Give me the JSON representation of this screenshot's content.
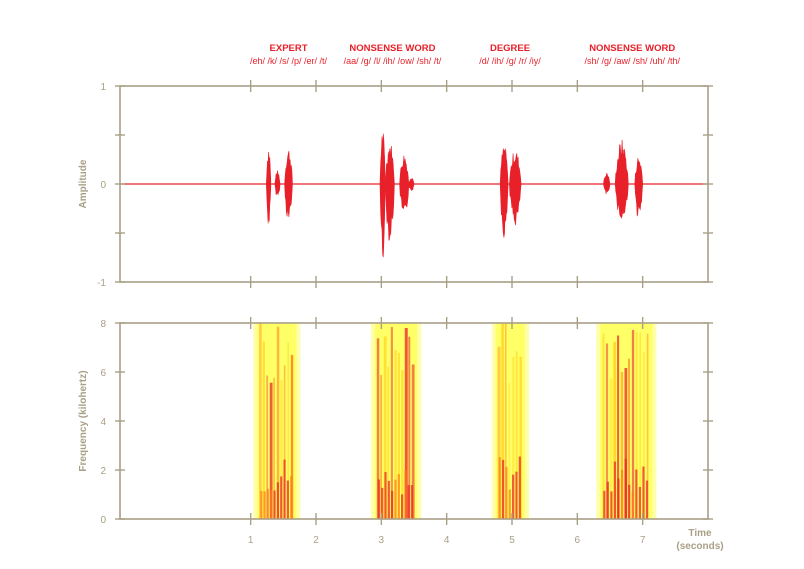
{
  "chart_data": [
    {
      "type": "line",
      "panel": "waveform",
      "ylabel": "Amplitude",
      "ylim": [
        -1,
        1
      ],
      "yticks": [
        "1",
        "0",
        "-1"
      ],
      "xlim": [
        -1.0,
        8.0
      ],
      "xticks": [
        1,
        2,
        3,
        4,
        5,
        6,
        7
      ],
      "grid": false,
      "color": "#e8202a",
      "words": [
        {
          "title": "EXPERT",
          "phonemes": "/eh/ /k/ /s/ /p/ /er/ /t/",
          "center": 1.58
        },
        {
          "title": "NONSENSE WORD",
          "phonemes": "/aa/ /g/ /l/ /ih/ /ow/ /sh/ /t/",
          "center": 3.17
        },
        {
          "title": "DEGREE",
          "phonemes": "/d/ /ih/ /g/ /r/ /iy/",
          "center": 4.97
        },
        {
          "title": "NONSENSE WORD",
          "phonemes": "/sh/ /g/ /aw/ /sh/ /uh/ /th/",
          "center": 6.84
        }
      ],
      "series": [
        {
          "segments": [
            {
              "x0": 1.24,
              "x1": 1.31,
              "amp_pos": 0.4,
              "amp_neg": 0.45
            },
            {
              "x0": 1.37,
              "x1": 1.45,
              "amp_pos": 0.14,
              "amp_neg": 0.14
            },
            {
              "x0": 1.52,
              "x1": 1.64,
              "amp_pos": 0.38,
              "amp_neg": 0.4
            }
          ]
        },
        {
          "segments": [
            {
              "x0": 2.98,
              "x1": 3.06,
              "amp_pos": 0.58,
              "amp_neg": 0.8
            },
            {
              "x0": 3.06,
              "x1": 3.2,
              "amp_pos": 0.45,
              "amp_neg": 0.6
            },
            {
              "x0": 3.28,
              "x1": 3.42,
              "amp_pos": 0.32,
              "amp_neg": 0.38
            },
            {
              "x0": 3.42,
              "x1": 3.5,
              "amp_pos": 0.08,
              "amp_neg": 0.08
            }
          ]
        },
        {
          "segments": [
            {
              "x0": 4.82,
              "x1": 4.94,
              "amp_pos": 0.42,
              "amp_neg": 0.55
            },
            {
              "x0": 4.96,
              "x1": 5.14,
              "amp_pos": 0.36,
              "amp_neg": 0.44
            }
          ]
        },
        {
          "segments": [
            {
              "x0": 6.4,
              "x1": 6.5,
              "amp_pos": 0.12,
              "amp_neg": 0.12
            },
            {
              "x0": 6.58,
              "x1": 6.78,
              "amp_pos": 0.46,
              "amp_neg": 0.4
            },
            {
              "x0": 6.88,
              "x1": 7.0,
              "amp_pos": 0.3,
              "amp_neg": 0.38
            }
          ]
        }
      ]
    },
    {
      "type": "heatmap",
      "panel": "spectrogram",
      "ylabel": "Frequency (kilohertz)",
      "xlabel": "Time",
      "xunit": "(seconds)",
      "ylim": [
        0,
        8
      ],
      "yticks": [
        "8",
        "6",
        "4",
        "2",
        "0"
      ],
      "xlim": [
        -1.0,
        8.0
      ],
      "xticks": [
        "1",
        "2",
        "3",
        "4",
        "5",
        "6",
        "7"
      ],
      "colors": {
        "low": "#ffff66",
        "mid": "#ffd21e",
        "high": "#ff7a1a",
        "peak": "#e8202a"
      },
      "regions": [
        {
          "x0": 1.1,
          "x1": 1.7
        },
        {
          "x0": 2.9,
          "x1": 3.55
        },
        {
          "x0": 4.75,
          "x1": 5.2
        },
        {
          "x0": 6.35,
          "x1": 7.15
        }
      ]
    }
  ]
}
